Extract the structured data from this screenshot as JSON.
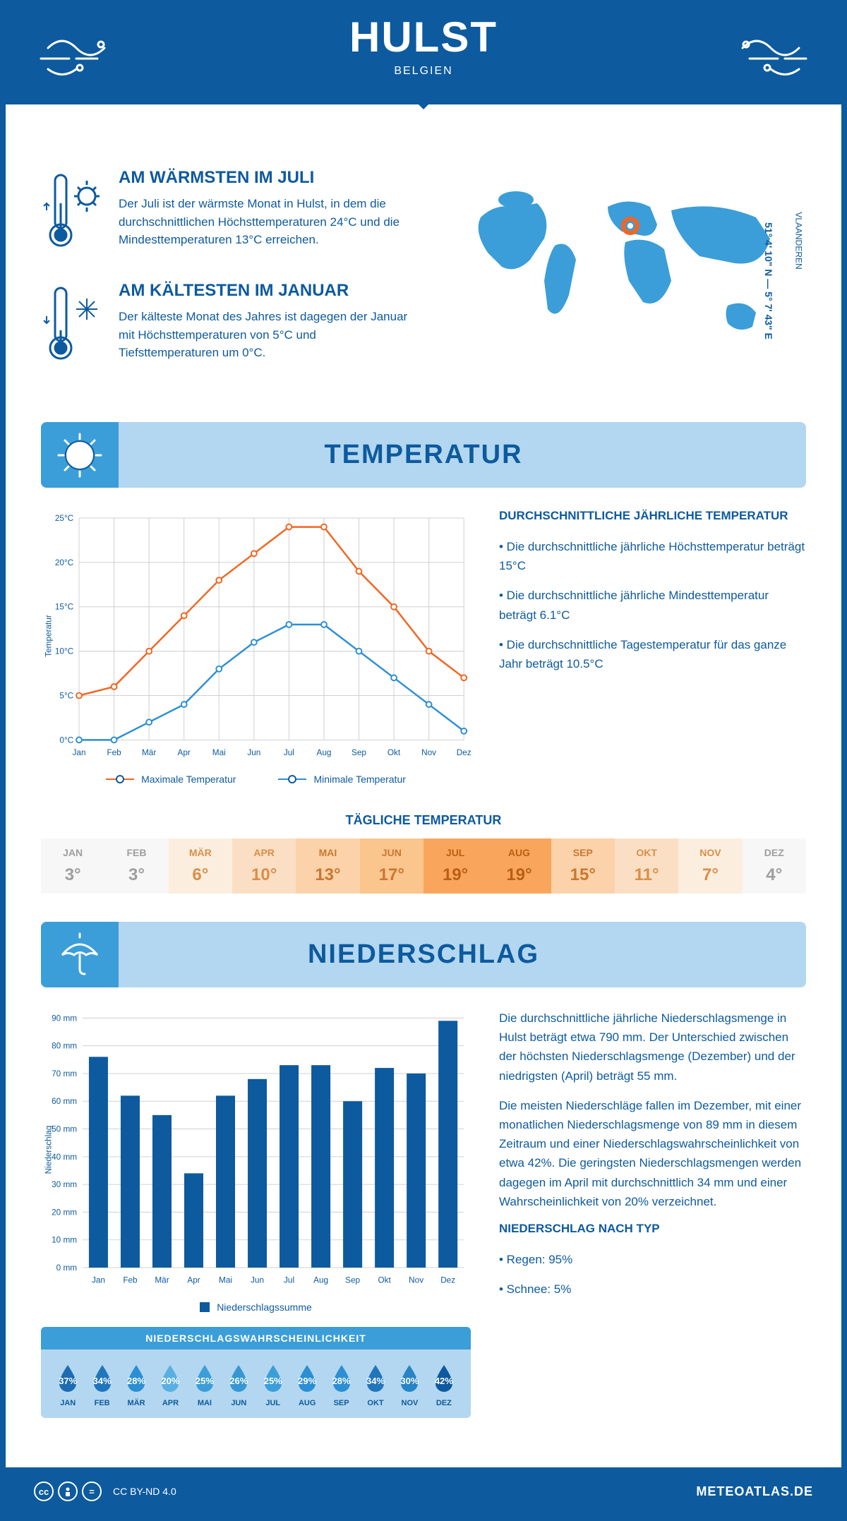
{
  "header": {
    "title": "HULST",
    "subtitle": "BELGIEN",
    "coords": "51° 4' 10\" N — 5° 7' 43\" E",
    "region": "VLAANDEREN"
  },
  "colors": {
    "primary": "#0d5a9e",
    "light_blue": "#b3d7f0",
    "mid_blue": "#3b9ed8",
    "orange": "#f26522",
    "line_blue": "#2c8fd4"
  },
  "facts": {
    "warm": {
      "title": "AM WÄRMSTEN IM JULI",
      "text": "Der Juli ist der wärmste Monat in Hulst, in dem die durchschnittlichen Höchsttemperaturen 24°C und die Mindesttemperaturen 13°C erreichen."
    },
    "cold": {
      "title": "AM KÄLTESTEN IM JANUAR",
      "text": "Der kälteste Monat des Jahres ist dagegen der Januar mit Höchsttemperaturen von 5°C und Tiefsttemperaturen um 0°C."
    }
  },
  "temp_section": {
    "title": "TEMPERATUR",
    "chart": {
      "type": "line",
      "months": [
        "Jan",
        "Feb",
        "Mär",
        "Apr",
        "Mai",
        "Jun",
        "Jul",
        "Aug",
        "Sep",
        "Okt",
        "Nov",
        "Dez"
      ],
      "max_temp": [
        5,
        6,
        10,
        14,
        18,
        21,
        24,
        24,
        19,
        15,
        10,
        7
      ],
      "min_temp": [
        0,
        0,
        2,
        4,
        8,
        11,
        13,
        13,
        10,
        7,
        4,
        1
      ],
      "ylabel": "Temperatur",
      "ylim": [
        0,
        25
      ],
      "ytick_step": 5,
      "ytick_labels": [
        "0°C",
        "5°C",
        "10°C",
        "15°C",
        "20°C",
        "25°C"
      ],
      "max_color": "#f26522",
      "min_color": "#2c8fd4",
      "grid_color": "#d0d0d0",
      "legend_max": "Maximale Temperatur",
      "legend_min": "Minimale Temperatur"
    },
    "info": {
      "title": "DURCHSCHNITTLICHE JÄHRLICHE TEMPERATUR",
      "bullets": [
        "• Die durchschnittliche jährliche Höchsttemperatur beträgt 15°C",
        "• Die durchschnittliche jährliche Mindesttemperatur beträgt 6.1°C",
        "• Die durchschnittliche Tagestemperatur für das ganze Jahr beträgt 10.5°C"
      ]
    },
    "daily": {
      "title": "TÄGLICHE TEMPERATUR",
      "months": [
        "JAN",
        "FEB",
        "MÄR",
        "APR",
        "MAI",
        "JUN",
        "JUL",
        "AUG",
        "SEP",
        "OKT",
        "NOV",
        "DEZ"
      ],
      "values": [
        "3°",
        "3°",
        "6°",
        "10°",
        "13°",
        "17°",
        "19°",
        "19°",
        "15°",
        "11°",
        "7°",
        "4°"
      ],
      "bg_colors": [
        "#f7f7f7",
        "#f7f7f7",
        "#fceede",
        "#fbdfc4",
        "#fbd2a9",
        "#fbc58e",
        "#f9a65c",
        "#f9a65c",
        "#fbd2a9",
        "#fbdfc4",
        "#fceede",
        "#f7f7f7"
      ],
      "text_colors": [
        "#9e9e9e",
        "#9e9e9e",
        "#d88f4a",
        "#d88f4a",
        "#c97830",
        "#c97830",
        "#b85f15",
        "#b85f15",
        "#c97830",
        "#d88f4a",
        "#d88f4a",
        "#9e9e9e"
      ]
    }
  },
  "precip_section": {
    "title": "NIEDERSCHLAG",
    "chart": {
      "type": "bar",
      "months": [
        "Jan",
        "Feb",
        "Mär",
        "Apr",
        "Mai",
        "Jun",
        "Jul",
        "Aug",
        "Sep",
        "Okt",
        "Nov",
        "Dez"
      ],
      "values": [
        76,
        62,
        55,
        34,
        62,
        68,
        73,
        73,
        60,
        72,
        70,
        89
      ],
      "ylabel": "Niederschlag",
      "ylim": [
        0,
        90
      ],
      "ytick_step": 10,
      "ytick_labels": [
        "0 mm",
        "10 mm",
        "20 mm",
        "30 mm",
        "40 mm",
        "50 mm",
        "60 mm",
        "70 mm",
        "80 mm",
        "90 mm"
      ],
      "bar_color": "#0d5a9e",
      "grid_color": "#d0d0d0",
      "legend": "Niederschlagssumme"
    },
    "text1": "Die durchschnittliche jährliche Niederschlagsmenge in Hulst beträgt etwa 790 mm. Der Unterschied zwischen der höchsten Niederschlagsmenge (Dezember) und der niedrigsten (April) beträgt 55 mm.",
    "text2": "Die meisten Niederschläge fallen im Dezember, mit einer monatlichen Niederschlagsmenge von 89 mm in diesem Zeitraum und einer Niederschlagswahrscheinlichkeit von etwa 42%. Die geringsten Niederschlagsmengen werden dagegen im April mit durchschnittlich 34 mm und einer Wahrscheinlichkeit von 20% verzeichnet.",
    "type_title": "NIEDERSCHLAG NACH TYP",
    "types": [
      "• Regen: 95%",
      "• Schnee: 5%"
    ],
    "prob": {
      "title": "NIEDERSCHLAGSWAHRSCHEINLICHKEIT",
      "months": [
        "JAN",
        "FEB",
        "MÄR",
        "APR",
        "MAI",
        "JUN",
        "JUL",
        "AUG",
        "SEP",
        "OKT",
        "NOV",
        "DEZ"
      ],
      "values": [
        "37%",
        "34%",
        "28%",
        "20%",
        "25%",
        "26%",
        "25%",
        "29%",
        "28%",
        "34%",
        "30%",
        "42%"
      ],
      "drop_colors": [
        "#1d6bb0",
        "#2076bc",
        "#2c8fd4",
        "#5aafe2",
        "#3b9ed8",
        "#3697d2",
        "#3b9ed8",
        "#2c8fd4",
        "#2c8fd4",
        "#2076bc",
        "#2784c7",
        "#0d5a9e"
      ]
    }
  },
  "footer": {
    "license": "CC BY-ND 4.0",
    "site": "METEOATLAS.DE"
  }
}
